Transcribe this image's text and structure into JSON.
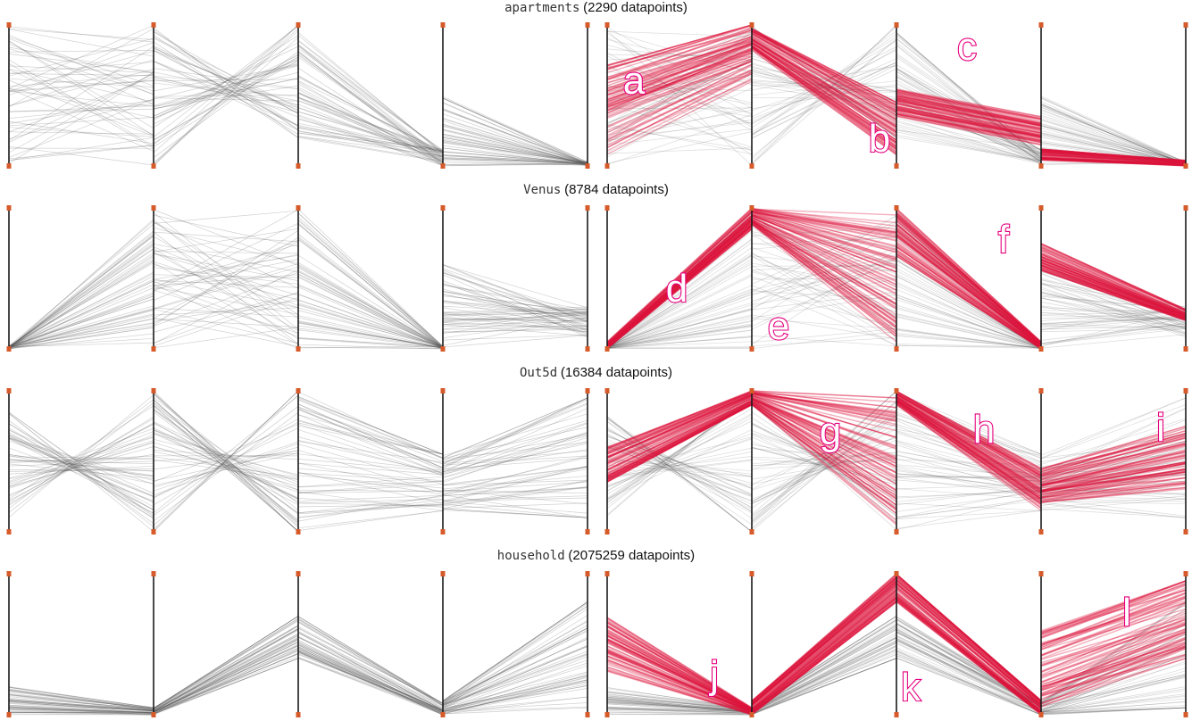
{
  "chart_data": {
    "type": "parallel-coordinates",
    "grid": false,
    "axes_per_plot": 5,
    "panels_per_row": [
      "original",
      "highlighted"
    ],
    "colors": {
      "lines": "#5a5a5a",
      "highlight": "#dc143c",
      "axis": "#1a1a1a",
      "axis_endpoint": "#d65a2a",
      "label_outline": "#e6007e",
      "label_fill": "#ffffff"
    },
    "rows": [
      {
        "dataset": "apartments",
        "count_text": "(2290 datapoints)",
        "segments": [
          {
            "src": [
              0.0,
              1.0
            ],
            "dst": [
              0.0,
              1.0
            ],
            "pattern": "random"
          },
          {
            "src": [
              0.0,
              1.0
            ],
            "dst": [
              0.2,
              1.0
            ],
            "pattern": "bundle"
          },
          {
            "src": [
              0.2,
              0.95
            ],
            "dst": [
              0.0,
              0.12
            ],
            "pattern": "fan"
          },
          {
            "src": [
              0.0,
              0.5
            ],
            "dst": [
              0.0,
              0.03
            ],
            "pattern": "fan"
          }
        ],
        "highlights": [
          {
            "segment": 0,
            "src": [
              0.08,
              0.72
            ],
            "dst": [
              0.6,
              1.0
            ]
          },
          {
            "segment": 1,
            "src": [
              0.82,
              0.98
            ],
            "dst": [
              0.08,
              0.45
            ]
          },
          {
            "segment": 2,
            "src": [
              0.35,
              0.55
            ],
            "dst": [
              0.15,
              0.35
            ]
          },
          {
            "segment": 3,
            "src": [
              0.04,
              0.12
            ],
            "dst": [
              0.0,
              0.04
            ]
          }
        ],
        "labels": [
          "a",
          "b",
          "c"
        ]
      },
      {
        "dataset": "Venus",
        "count_text": "(8784 datapoints)",
        "segments": [
          {
            "src": [
              0.0,
              0.02
            ],
            "dst": [
              0.0,
              1.0
            ],
            "pattern": "fan-out"
          },
          {
            "src": [
              0.0,
              1.0
            ],
            "dst": [
              0.0,
              1.0
            ],
            "pattern": "mesh"
          },
          {
            "src": [
              0.0,
              1.0
            ],
            "dst": [
              0.0,
              0.02
            ],
            "pattern": "fan-in"
          },
          {
            "src": [
              0.0,
              0.6
            ],
            "dst": [
              0.08,
              0.3
            ],
            "pattern": "fan"
          }
        ],
        "highlights": [
          {
            "segment": 0,
            "src": [
              0.0,
              0.05
            ],
            "dst": [
              0.85,
              1.0
            ]
          },
          {
            "segment": 1,
            "src": [
              0.88,
              1.0
            ],
            "dst": [
              0.05,
              0.95
            ]
          },
          {
            "segment": 2,
            "src": [
              0.65,
              1.0
            ],
            "dst": [
              0.0,
              0.05
            ]
          },
          {
            "segment": 3,
            "src": [
              0.55,
              0.75
            ],
            "dst": [
              0.2,
              0.28
            ]
          }
        ],
        "labels": [
          "d",
          "e",
          "f"
        ]
      },
      {
        "dataset": "Out5d",
        "count_text": "(16384 datapoints)",
        "segments": [
          {
            "src": [
              0.1,
              0.85
            ],
            "dst": [
              0.0,
              1.0
            ],
            "pattern": "cross"
          },
          {
            "src": [
              0.0,
              1.0
            ],
            "dst": [
              0.0,
              1.0
            ],
            "pattern": "cross"
          },
          {
            "src": [
              0.0,
              1.0
            ],
            "dst": [
              0.15,
              0.55
            ],
            "pattern": "converge"
          },
          {
            "src": [
              0.15,
              0.55
            ],
            "dst": [
              0.1,
              0.95
            ],
            "pattern": "spread"
          }
        ],
        "highlights": [
          {
            "segment": 0,
            "src": [
              0.35,
              0.6
            ],
            "dst": [
              0.9,
              1.0
            ]
          },
          {
            "segment": 1,
            "src": [
              0.9,
              1.0
            ],
            "dst": [
              0.05,
              0.95
            ]
          },
          {
            "segment": 2,
            "src": [
              0.9,
              1.0
            ],
            "dst": [
              0.15,
              0.45
            ]
          },
          {
            "segment": 3,
            "src": [
              0.2,
              0.45
            ],
            "dst": [
              0.3,
              0.75
            ]
          }
        ],
        "labels": [
          "g",
          "h",
          "i"
        ]
      },
      {
        "dataset": "household",
        "count_text": "(2075259 datapoints)",
        "segments": [
          {
            "src": [
              0.0,
              0.2
            ],
            "dst": [
              0.0,
              0.05
            ],
            "pattern": "flat"
          },
          {
            "src": [
              0.0,
              0.05
            ],
            "dst": [
              0.4,
              0.7
            ],
            "pattern": "rise"
          },
          {
            "src": [
              0.4,
              0.7
            ],
            "dst": [
              0.0,
              0.08
            ],
            "pattern": "fall"
          },
          {
            "src": [
              0.0,
              0.1
            ],
            "dst": [
              0.05,
              0.8
            ],
            "pattern": "spread"
          }
        ],
        "highlights": [
          {
            "segment": 0,
            "src": [
              0.3,
              0.7
            ],
            "dst": [
              0.0,
              0.05
            ]
          },
          {
            "segment": 1,
            "src": [
              0.0,
              0.1
            ],
            "dst": [
              0.8,
              1.0
            ]
          },
          {
            "segment": 2,
            "src": [
              0.8,
              1.0
            ],
            "dst": [
              0.0,
              0.1
            ]
          },
          {
            "segment": 3,
            "src": [
              0.05,
              0.6
            ],
            "dst": [
              0.4,
              0.95
            ]
          }
        ],
        "labels": [
          "j",
          "k",
          "l"
        ]
      }
    ]
  }
}
